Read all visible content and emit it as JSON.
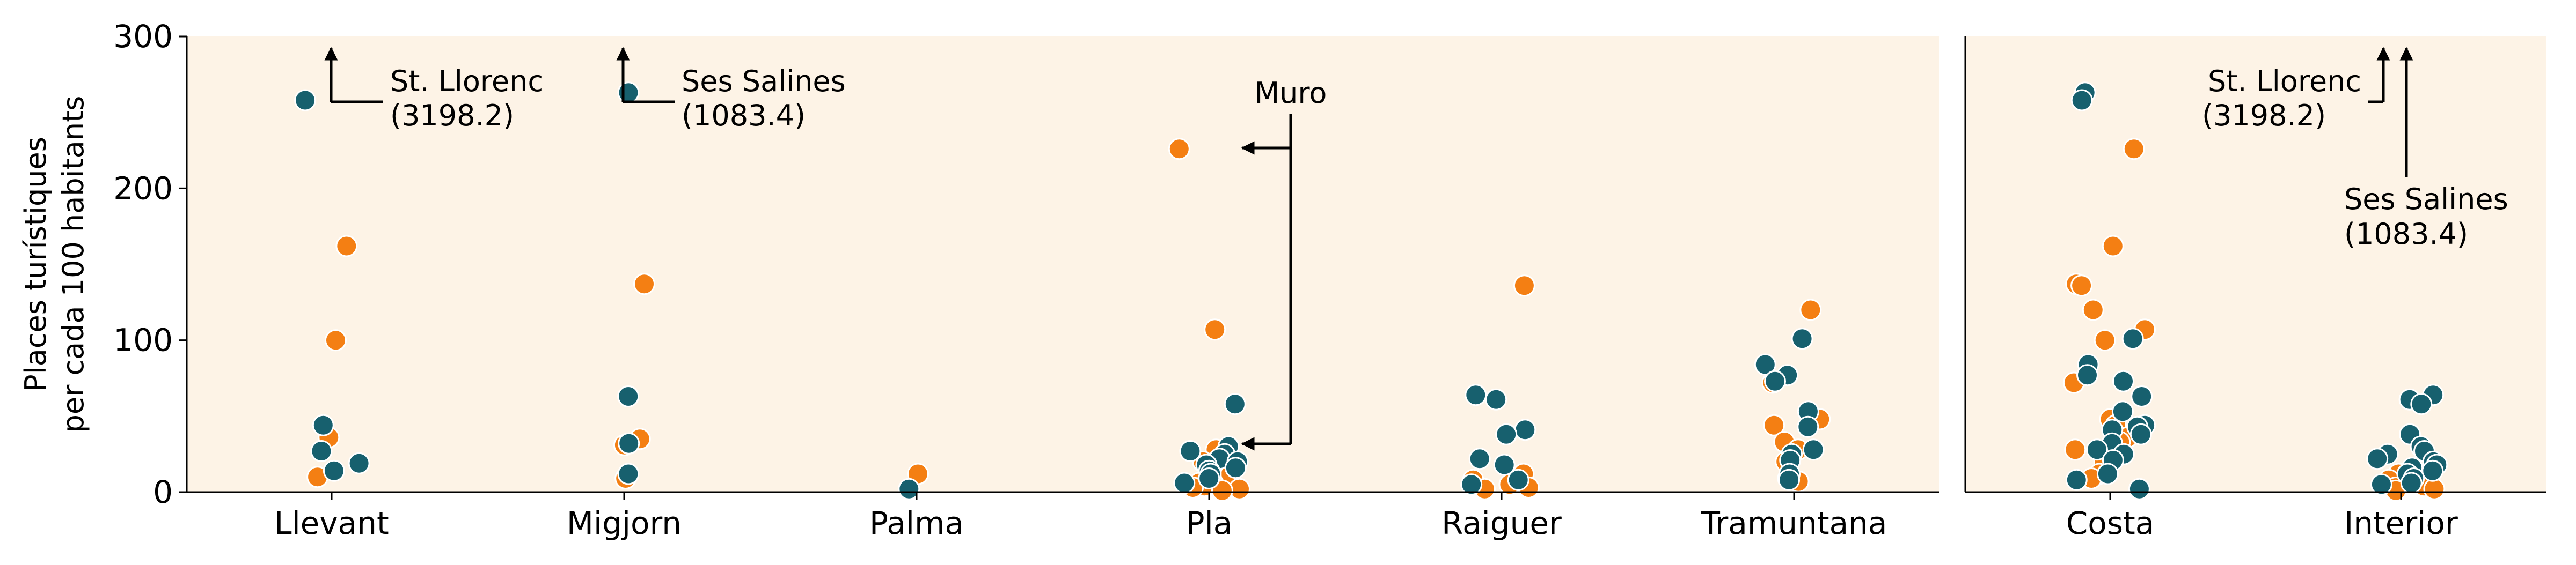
{
  "chart_data": [
    {
      "type": "scatter",
      "title": "",
      "ylabel": [
        "Places turístiques",
        "per cada 100 habitants"
      ],
      "xlabel": "",
      "ylim": [
        0,
        300
      ],
      "yticks": [
        0,
        100,
        200,
        300
      ],
      "categories": [
        "Llevant",
        "Migjorn",
        "Palma",
        "Pla",
        "Raiguer",
        "Tramuntana"
      ],
      "grid": false,
      "series": [
        {
          "color": "#f47f13",
          "points": [
            {
              "x": "Llevant",
              "y": 162
            },
            {
              "x": "Llevant",
              "y": 100
            },
            {
              "x": "Llevant",
              "y": 36
            },
            {
              "x": "Llevant",
              "y": 10
            },
            {
              "x": "Migjorn",
              "y": 137
            },
            {
              "x": "Migjorn",
              "y": 35
            },
            {
              "x": "Migjorn",
              "y": 31
            },
            {
              "x": "Migjorn",
              "y": 9
            },
            {
              "x": "Palma",
              "y": 12
            },
            {
              "x": "Pla",
              "y": 226
            },
            {
              "x": "Pla",
              "y": 107
            },
            {
              "x": "Pla",
              "y": 28
            },
            {
              "x": "Pla",
              "y": 20
            },
            {
              "x": "Pla",
              "y": 12
            },
            {
              "x": "Pla",
              "y": 6
            },
            {
              "x": "Pla",
              "y": 4
            },
            {
              "x": "Pla",
              "y": 3
            },
            {
              "x": "Pla",
              "y": 2
            },
            {
              "x": "Pla",
              "y": 1
            },
            {
              "x": "Raiguer",
              "y": 136
            },
            {
              "x": "Raiguer",
              "y": 12
            },
            {
              "x": "Raiguer",
              "y": 8
            },
            {
              "x": "Raiguer",
              "y": 5
            },
            {
              "x": "Raiguer",
              "y": 3
            },
            {
              "x": "Raiguer",
              "y": 2
            },
            {
              "x": "Tramuntana",
              "y": 120
            },
            {
              "x": "Tramuntana",
              "y": 72
            },
            {
              "x": "Tramuntana",
              "y": 48
            },
            {
              "x": "Tramuntana",
              "y": 44
            },
            {
              "x": "Tramuntana",
              "y": 33
            },
            {
              "x": "Tramuntana",
              "y": 28
            },
            {
              "x": "Tramuntana",
              "y": 20
            },
            {
              "x": "Tramuntana",
              "y": 9
            },
            {
              "x": "Tramuntana",
              "y": 7
            }
          ]
        },
        {
          "color": "#17606e",
          "points": [
            {
              "x": "Llevant",
              "y": 258,
              "label": "St. Llorenc",
              "actual": "3198.2"
            },
            {
              "x": "Llevant",
              "y": 44
            },
            {
              "x": "Llevant",
              "y": 27
            },
            {
              "x": "Llevant",
              "y": 19
            },
            {
              "x": "Llevant",
              "y": 14
            },
            {
              "x": "Migjorn",
              "y": 263,
              "label": "Ses Salines",
              "actual": "1083.4"
            },
            {
              "x": "Migjorn",
              "y": 63
            },
            {
              "x": "Migjorn",
              "y": 32
            },
            {
              "x": "Migjorn",
              "y": 12
            },
            {
              "x": "Palma",
              "y": 2
            },
            {
              "x": "Pla",
              "y": 58
            },
            {
              "x": "Pla",
              "y": 30
            },
            {
              "x": "Pla",
              "y": 27
            },
            {
              "x": "Pla",
              "y": 25
            },
            {
              "x": "Pla",
              "y": 22
            },
            {
              "x": "Pla",
              "y": 20
            },
            {
              "x": "Pla",
              "y": 18
            },
            {
              "x": "Pla",
              "y": 16
            },
            {
              "x": "Pla",
              "y": 14
            },
            {
              "x": "Pla",
              "y": 12
            },
            {
              "x": "Pla",
              "y": 9
            },
            {
              "x": "Pla",
              "y": 6
            },
            {
              "x": "Raiguer",
              "y": 64
            },
            {
              "x": "Raiguer",
              "y": 61
            },
            {
              "x": "Raiguer",
              "y": 41
            },
            {
              "x": "Raiguer",
              "y": 38
            },
            {
              "x": "Raiguer",
              "y": 22
            },
            {
              "x": "Raiguer",
              "y": 18
            },
            {
              "x": "Raiguer",
              "y": 8
            },
            {
              "x": "Raiguer",
              "y": 5
            },
            {
              "x": "Tramuntana",
              "y": 101
            },
            {
              "x": "Tramuntana",
              "y": 84
            },
            {
              "x": "Tramuntana",
              "y": 77
            },
            {
              "x": "Tramuntana",
              "y": 73
            },
            {
              "x": "Tramuntana",
              "y": 53
            },
            {
              "x": "Tramuntana",
              "y": 43
            },
            {
              "x": "Tramuntana",
              "y": 28
            },
            {
              "x": "Tramuntana",
              "y": 25
            },
            {
              "x": "Tramuntana",
              "y": 21
            },
            {
              "x": "Tramuntana",
              "y": 12
            },
            {
              "x": "Tramuntana",
              "y": 8
            }
          ]
        }
      ],
      "annotations": [
        {
          "text": [
            "St. Llorenc",
            "(3198.2)"
          ],
          "category": "Llevant",
          "kind": "offscale"
        },
        {
          "text": [
            "Ses Salines",
            "(1083.4)"
          ],
          "category": "Migjorn",
          "kind": "offscale"
        },
        {
          "text": [
            "Muro"
          ],
          "category": "Pla",
          "kind": "pointer",
          "targets": [
            226,
            27
          ]
        }
      ]
    },
    {
      "type": "scatter",
      "title": "",
      "ylim": [
        0,
        300
      ],
      "categories": [
        "Costa",
        "Interior"
      ],
      "grid": false,
      "series": [
        {
          "color": "#f47f13",
          "points": [
            {
              "x": "Costa",
              "y": 226
            },
            {
              "x": "Costa",
              "y": 162
            },
            {
              "x": "Costa",
              "y": 137
            },
            {
              "x": "Costa",
              "y": 136
            },
            {
              "x": "Costa",
              "y": 120
            },
            {
              "x": "Costa",
              "y": 107
            },
            {
              "x": "Costa",
              "y": 100
            },
            {
              "x": "Costa",
              "y": 72
            },
            {
              "x": "Costa",
              "y": 48
            },
            {
              "x": "Costa",
              "y": 44
            },
            {
              "x": "Costa",
              "y": 36
            },
            {
              "x": "Costa",
              "y": 33
            },
            {
              "x": "Costa",
              "y": 28
            },
            {
              "x": "Costa",
              "y": 20
            },
            {
              "x": "Costa",
              "y": 12
            },
            {
              "x": "Costa",
              "y": 9
            },
            {
              "x": "Interior",
              "y": 12
            },
            {
              "x": "Interior",
              "y": 8
            },
            {
              "x": "Interior",
              "y": 6
            },
            {
              "x": "Interior",
              "y": 4
            },
            {
              "x": "Interior",
              "y": 3
            },
            {
              "x": "Interior",
              "y": 2
            },
            {
              "x": "Interior",
              "y": 1
            }
          ]
        },
        {
          "color": "#17606e",
          "points": [
            {
              "x": "Costa",
              "y": 263,
              "label": "Ses Salines",
              "actual": "1083.4"
            },
            {
              "x": "Costa",
              "y": 258,
              "label": "St. Llorenc",
              "actual": "3198.2"
            },
            {
              "x": "Costa",
              "y": 101
            },
            {
              "x": "Costa",
              "y": 84
            },
            {
              "x": "Costa",
              "y": 77
            },
            {
              "x": "Costa",
              "y": 73
            },
            {
              "x": "Costa",
              "y": 63
            },
            {
              "x": "Costa",
              "y": 53
            },
            {
              "x": "Costa",
              "y": 44
            },
            {
              "x": "Costa",
              "y": 43
            },
            {
              "x": "Costa",
              "y": 41
            },
            {
              "x": "Costa",
              "y": 38
            },
            {
              "x": "Costa",
              "y": 32
            },
            {
              "x": "Costa",
              "y": 28
            },
            {
              "x": "Costa",
              "y": 25
            },
            {
              "x": "Costa",
              "y": 21
            },
            {
              "x": "Costa",
              "y": 12
            },
            {
              "x": "Costa",
              "y": 8
            },
            {
              "x": "Costa",
              "y": 2
            },
            {
              "x": "Interior",
              "y": 64
            },
            {
              "x": "Interior",
              "y": 61
            },
            {
              "x": "Interior",
              "y": 58
            },
            {
              "x": "Interior",
              "y": 38
            },
            {
              "x": "Interior",
              "y": 30
            },
            {
              "x": "Interior",
              "y": 27
            },
            {
              "x": "Interior",
              "y": 25
            },
            {
              "x": "Interior",
              "y": 22
            },
            {
              "x": "Interior",
              "y": 20
            },
            {
              "x": "Interior",
              "y": 18
            },
            {
              "x": "Interior",
              "y": 16
            },
            {
              "x": "Interior",
              "y": 14
            },
            {
              "x": "Interior",
              "y": 12
            },
            {
              "x": "Interior",
              "y": 9
            },
            {
              "x": "Interior",
              "y": 6
            },
            {
              "x": "Interior",
              "y": 5
            }
          ]
        }
      ],
      "annotations": [
        {
          "text": [
            "St. Llorenc",
            "(3198.2)"
          ],
          "category": "Costa",
          "kind": "offscale"
        },
        {
          "text": [
            "Ses Salines",
            "(1083.4)"
          ],
          "category": "Costa",
          "kind": "offscale"
        }
      ]
    }
  ],
  "style": {
    "panel_background": "#fdf3e6",
    "axis_color": "#000000",
    "marker_edge": "#ffffff"
  }
}
